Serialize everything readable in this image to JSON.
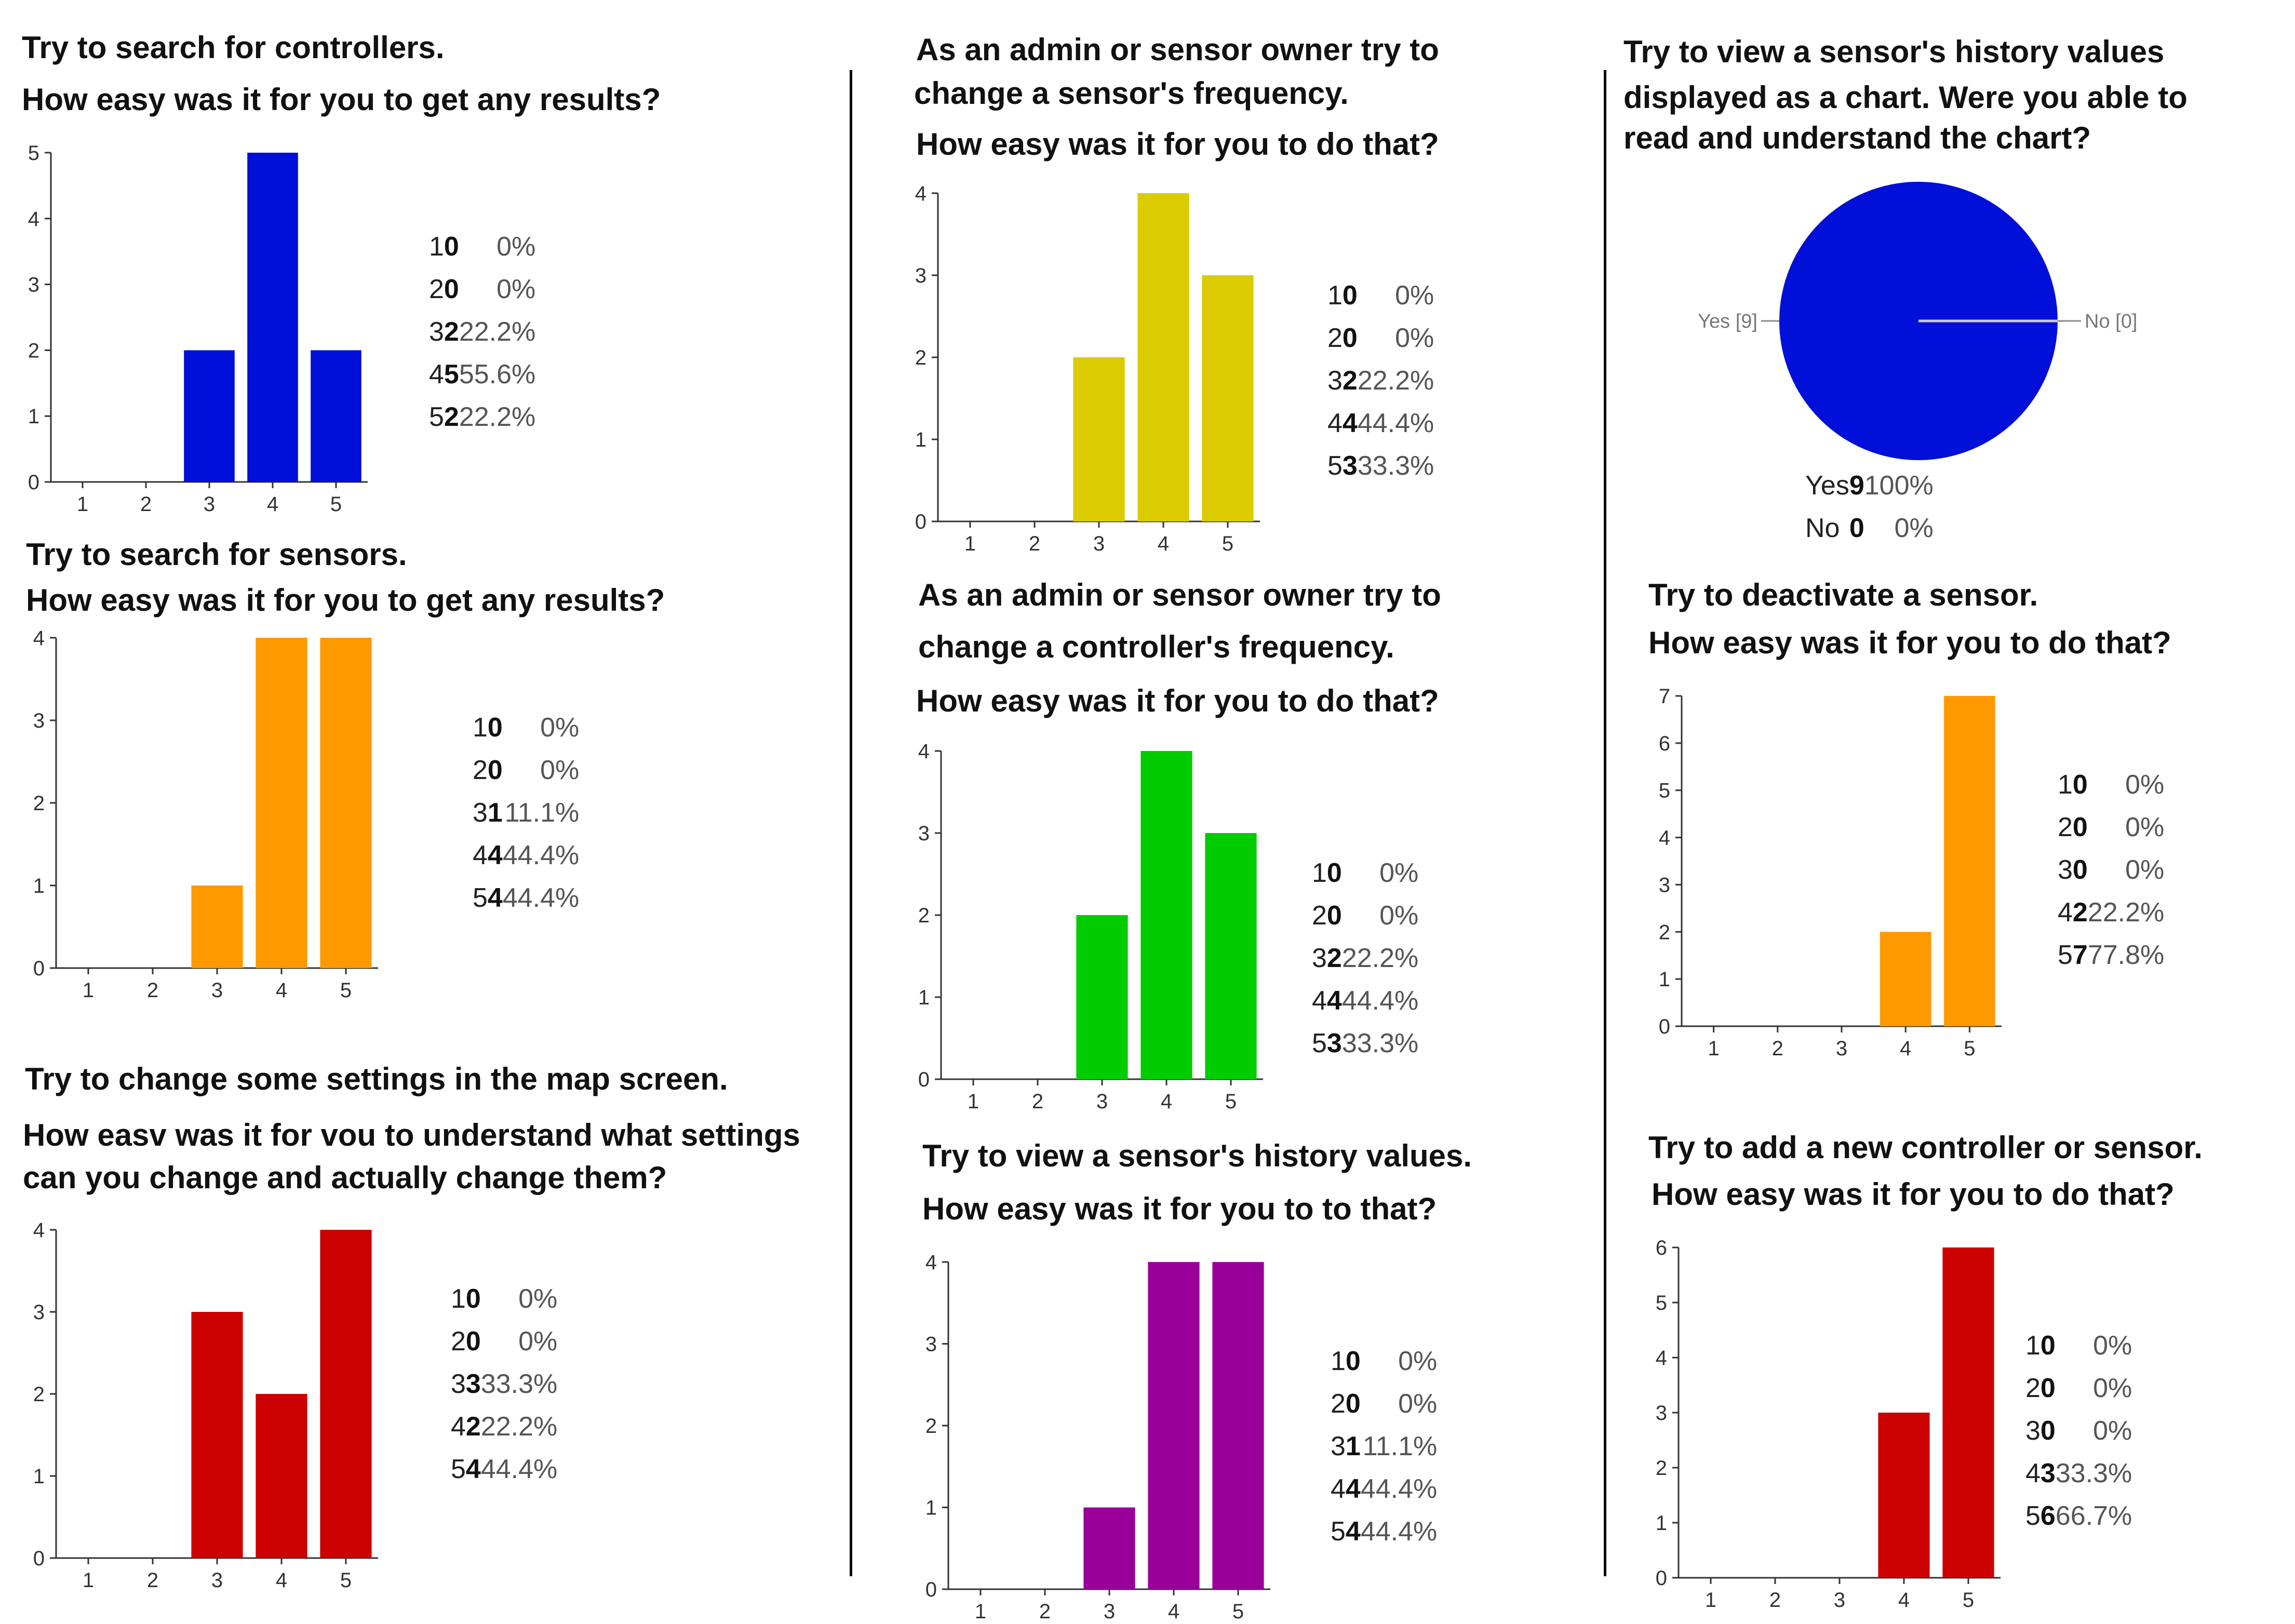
{
  "colors": {
    "blue": "#0010d8",
    "orange": "#ff9900",
    "red": "#cc0000",
    "yellow": "#dccb00",
    "green": "#00cc00",
    "purple": "#990099"
  },
  "charts": [
    {
      "id": "c1",
      "title_lines": [
        "Try to search for controllers.",
        "How easy was it for you to get any results?"
      ],
      "chart_data": {
        "type": "bar",
        "categories": [
          "1",
          "2",
          "3",
          "4",
          "5"
        ],
        "values": [
          0,
          0,
          2,
          5,
          2
        ],
        "ylim": [
          0,
          5
        ],
        "yticks": [
          "0",
          "1",
          "2",
          "3",
          "4",
          "5"
        ],
        "color": "#0010d8"
      },
      "table": [
        {
          "k": "1",
          "c": "0",
          "p": "0%"
        },
        {
          "k": "2",
          "c": "0",
          "p": "0%"
        },
        {
          "k": "3",
          "c": "2",
          "p": "22.2%"
        },
        {
          "k": "4",
          "c": "5",
          "p": "55.6%"
        },
        {
          "k": "5",
          "c": "2",
          "p": "22.2%"
        }
      ]
    },
    {
      "id": "c2",
      "title_lines": [
        "Try to search for sensors.",
        "How easy was it for you to get any results?"
      ],
      "chart_data": {
        "type": "bar",
        "categories": [
          "1",
          "2",
          "3",
          "4",
          "5"
        ],
        "values": [
          0,
          0,
          1,
          4,
          4
        ],
        "ylim": [
          0,
          4
        ],
        "yticks": [
          "0",
          "1",
          "2",
          "3",
          "4"
        ],
        "color": "#ff9900"
      },
      "table": [
        {
          "k": "1",
          "c": "0",
          "p": "0%"
        },
        {
          "k": "2",
          "c": "0",
          "p": "0%"
        },
        {
          "k": "3",
          "c": "1",
          "p": "11.1%"
        },
        {
          "k": "4",
          "c": "4",
          "p": "44.4%"
        },
        {
          "k": "5",
          "c": "4",
          "p": "44.4%"
        }
      ]
    },
    {
      "id": "c3",
      "title_lines": [
        "Try to change some settings in the map screen.",
        "How easv was it for vou to understand what settings",
        "can you change and actually change them?"
      ],
      "chart_data": {
        "type": "bar",
        "categories": [
          "1",
          "2",
          "3",
          "4",
          "5"
        ],
        "values": [
          0,
          0,
          3,
          2,
          4
        ],
        "ylim": [
          0,
          4
        ],
        "yticks": [
          "0",
          "1",
          "2",
          "3",
          "4"
        ],
        "color": "#cc0000"
      },
      "table": [
        {
          "k": "1",
          "c": "0",
          "p": "0%"
        },
        {
          "k": "2",
          "c": "0",
          "p": "0%"
        },
        {
          "k": "3",
          "c": "3",
          "p": "33.3%"
        },
        {
          "k": "4",
          "c": "2",
          "p": "22.2%"
        },
        {
          "k": "5",
          "c": "4",
          "p": "44.4%"
        }
      ]
    },
    {
      "id": "c4",
      "title_lines": [
        "As an admin or sensor owner try to",
        "change a sensor's frequency.",
        "How easy was it for you to do that?"
      ],
      "chart_data": {
        "type": "bar",
        "categories": [
          "1",
          "2",
          "3",
          "4",
          "5"
        ],
        "values": [
          0,
          0,
          2,
          4,
          3
        ],
        "ylim": [
          0,
          4
        ],
        "yticks": [
          "0",
          "1",
          "2",
          "3",
          "4"
        ],
        "color": "#dccb00"
      },
      "table": [
        {
          "k": "1",
          "c": "0",
          "p": "0%"
        },
        {
          "k": "2",
          "c": "0",
          "p": "0%"
        },
        {
          "k": "3",
          "c": "2",
          "p": "22.2%"
        },
        {
          "k": "4",
          "c": "4",
          "p": "44.4%"
        },
        {
          "k": "5",
          "c": "3",
          "p": "33.3%"
        }
      ]
    },
    {
      "id": "c5",
      "title_lines": [
        "As an admin or sensor owner try to",
        "change a controller's frequency.",
        "How easy was it for you to do that?"
      ],
      "chart_data": {
        "type": "bar",
        "categories": [
          "1",
          "2",
          "3",
          "4",
          "5"
        ],
        "values": [
          0,
          0,
          2,
          4,
          3
        ],
        "ylim": [
          0,
          4
        ],
        "yticks": [
          "0",
          "1",
          "2",
          "3",
          "4"
        ],
        "color": "#00cc00"
      },
      "table": [
        {
          "k": "1",
          "c": "0",
          "p": "0%"
        },
        {
          "k": "2",
          "c": "0",
          "p": "0%"
        },
        {
          "k": "3",
          "c": "2",
          "p": "22.2%"
        },
        {
          "k": "4",
          "c": "4",
          "p": "44.4%"
        },
        {
          "k": "5",
          "c": "3",
          "p": "33.3%"
        }
      ]
    },
    {
      "id": "c6",
      "title_lines": [
        "Try to view a sensor's history values.",
        "How easy was it for you to to that?"
      ],
      "chart_data": {
        "type": "bar",
        "categories": [
          "1",
          "2",
          "3",
          "4",
          "5"
        ],
        "values": [
          0,
          0,
          1,
          4,
          4
        ],
        "ylim": [
          0,
          4
        ],
        "yticks": [
          "0",
          "1",
          "2",
          "3",
          "4"
        ],
        "color": "#990099"
      },
      "table": [
        {
          "k": "1",
          "c": "0",
          "p": "0%"
        },
        {
          "k": "2",
          "c": "0",
          "p": "0%"
        },
        {
          "k": "3",
          "c": "1",
          "p": "11.1%"
        },
        {
          "k": "4",
          "c": "4",
          "p": "44.4%"
        },
        {
          "k": "5",
          "c": "4",
          "p": "44.4%"
        }
      ]
    },
    {
      "id": "c7",
      "title_lines": [
        "Try to view a sensor's history values",
        "displayed as a chart. Were you able to",
        "read and  understand the chart?"
      ],
      "chart_data": {
        "type": "pie",
        "labels": [
          "Yes",
          "No"
        ],
        "values": [
          9,
          0
        ],
        "slice_labels": [
          "Yes [9]",
          "No [0]"
        ],
        "color": "#0010d8"
      },
      "table": [
        {
          "k": "Yes",
          "c": "9",
          "p": "100%"
        },
        {
          "k": "No",
          "c": "0",
          "p": "0%"
        }
      ]
    },
    {
      "id": "c8",
      "title_lines": [
        "Try to deactivate a sensor.",
        "How easy was it for you to do that?"
      ],
      "chart_data": {
        "type": "bar",
        "categories": [
          "1",
          "2",
          "3",
          "4",
          "5"
        ],
        "values": [
          0,
          0,
          0,
          2,
          7
        ],
        "ylim": [
          0,
          7
        ],
        "yticks": [
          "0",
          "1",
          "2",
          "3",
          "4",
          "5",
          "6",
          "7"
        ],
        "color": "#ff9900"
      },
      "table": [
        {
          "k": "1",
          "c": "0",
          "p": "0%"
        },
        {
          "k": "2",
          "c": "0",
          "p": "0%"
        },
        {
          "k": "3",
          "c": "0",
          "p": "0%"
        },
        {
          "k": "4",
          "c": "2",
          "p": "22.2%"
        },
        {
          "k": "5",
          "c": "7",
          "p": "77.8%"
        }
      ]
    },
    {
      "id": "c9",
      "title_lines": [
        "Try to add a new controller or sensor.",
        "How easy was it for you to do that?"
      ],
      "chart_data": {
        "type": "bar",
        "categories": [
          "1",
          "2",
          "3",
          "4",
          "5"
        ],
        "values": [
          0,
          0,
          0,
          3,
          6
        ],
        "ylim": [
          0,
          6
        ],
        "yticks": [
          "0",
          "1",
          "2",
          "3",
          "4",
          "5",
          "6"
        ],
        "color": "#cc0000"
      },
      "table": [
        {
          "k": "1",
          "c": "0",
          "p": "0%"
        },
        {
          "k": "2",
          "c": "0",
          "p": "0%"
        },
        {
          "k": "3",
          "c": "0",
          "p": "0%"
        },
        {
          "k": "4",
          "c": "3",
          "p": "33.3%"
        },
        {
          "k": "5",
          "c": "6",
          "p": "66.7%"
        }
      ]
    }
  ]
}
